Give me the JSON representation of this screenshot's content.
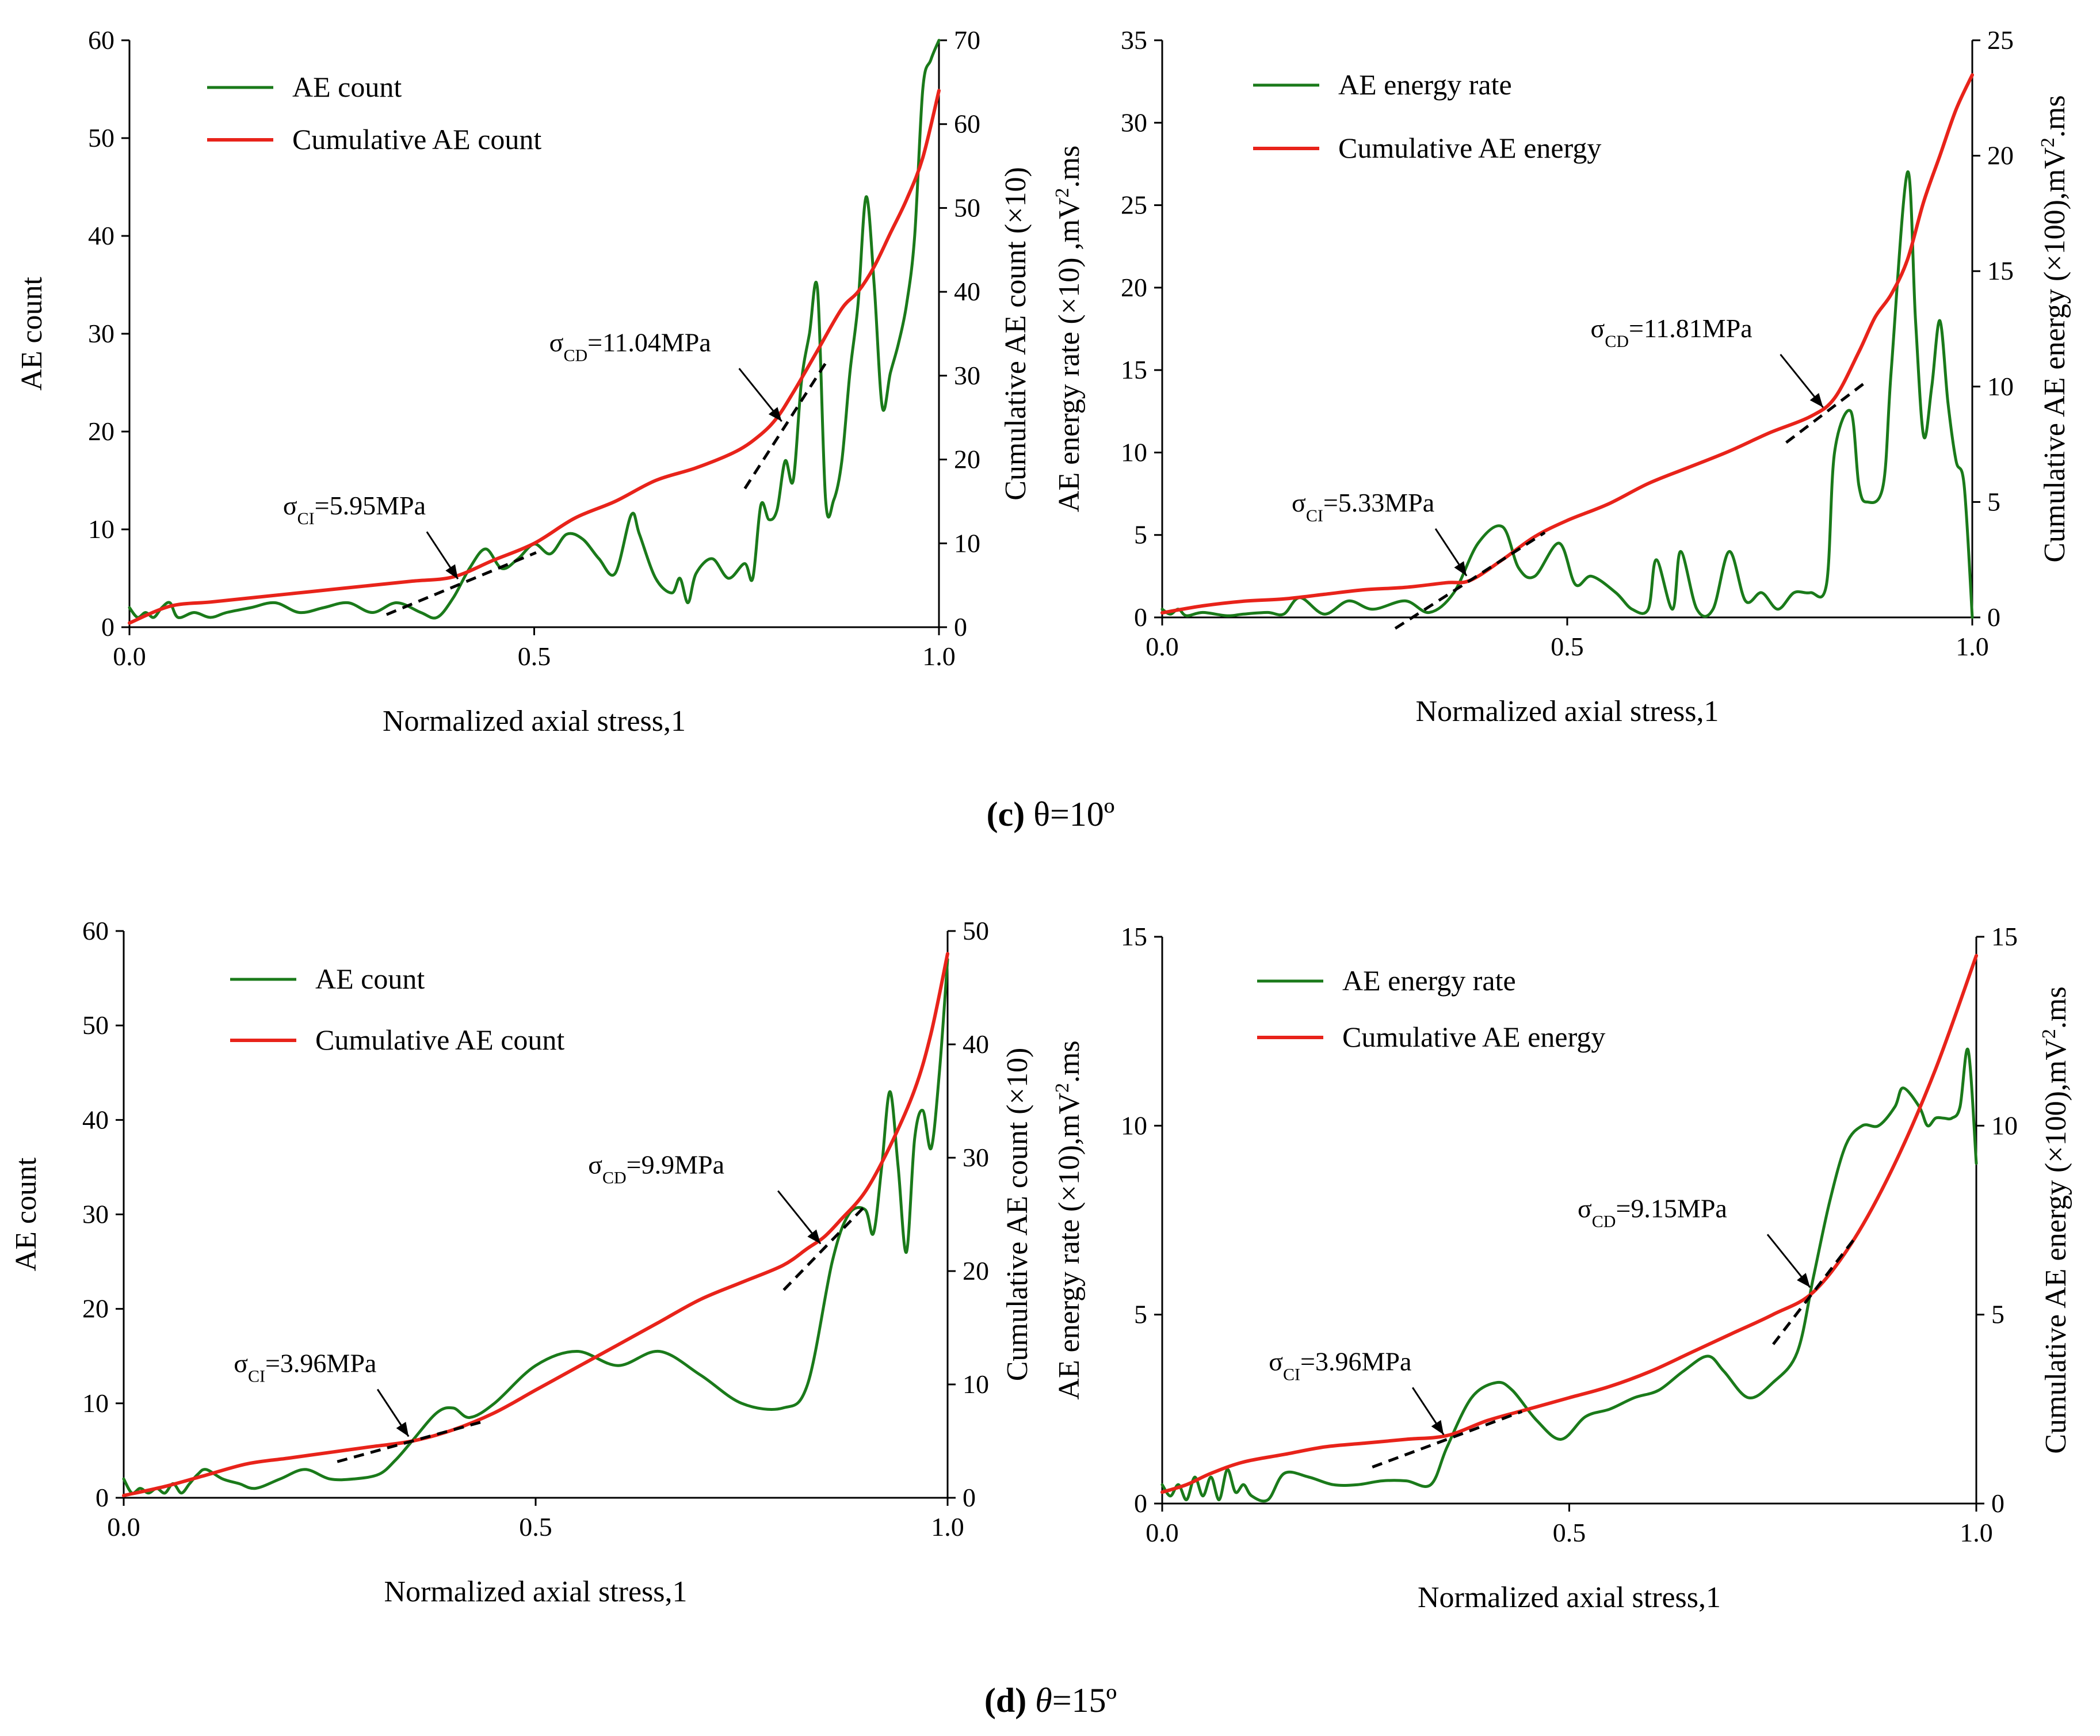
{
  "figure": {
    "captions": [
      {
        "letter": "(c)",
        "text": "θ=10º",
        "italic": false
      },
      {
        "letter": "(d)",
        "text": "θ=15º",
        "italic": true
      }
    ]
  },
  "chart_data": [
    {
      "type": "line",
      "title": "",
      "xlabel": "Normalized axial stress,1",
      "ylabel": "AE count",
      "y2label": "Cumulative AE count (×10)",
      "xlim": [
        0,
        1
      ],
      "ylim": [
        0,
        60
      ],
      "y2lim": [
        0,
        70
      ],
      "xticks": [
        0,
        0.5,
        1
      ],
      "xtick_labels": [
        "0.0",
        "0.5",
        "1.0"
      ],
      "yticks": [
        0,
        10,
        20,
        30,
        40,
        50,
        60
      ],
      "y2ticks": [
        0,
        10,
        20,
        30,
        40,
        50,
        60,
        70
      ],
      "legend": [
        "AE count",
        "Cumulative AE count"
      ],
      "legend_position": "top-left",
      "series": [
        {
          "name": "AE count",
          "axis": "left",
          "color": "#1a7a1a",
          "x": [
            0,
            0.01,
            0.02,
            0.03,
            0.04,
            0.05,
            0.06,
            0.08,
            0.1,
            0.12,
            0.15,
            0.18,
            0.21,
            0.24,
            0.27,
            0.3,
            0.33,
            0.36,
            0.38,
            0.4,
            0.42,
            0.44,
            0.46,
            0.48,
            0.5,
            0.52,
            0.54,
            0.56,
            0.58,
            0.6,
            0.62,
            0.63,
            0.65,
            0.67,
            0.68,
            0.69,
            0.7,
            0.72,
            0.74,
            0.76,
            0.77,
            0.78,
            0.79,
            0.8,
            0.81,
            0.82,
            0.83,
            0.84,
            0.85,
            0.86,
            0.87,
            0.88,
            0.89,
            0.9,
            0.91,
            0.92,
            0.93,
            0.94,
            0.95,
            0.96,
            0.97,
            0.98,
            0.99,
            1.0
          ],
          "y": [
            2,
            1,
            1.5,
            1,
            2,
            2.5,
            1,
            1.5,
            1,
            1.5,
            2,
            2.5,
            1.5,
            2,
            2.5,
            1.5,
            2.5,
            1.5,
            1,
            3,
            6,
            8,
            6,
            7,
            8.5,
            7.5,
            9.5,
            9,
            7,
            5.5,
            11.5,
            9.5,
            5,
            3.5,
            5,
            2.5,
            5.5,
            7,
            5,
            6.5,
            5,
            12.5,
            11,
            12,
            17,
            15,
            25,
            30,
            34.5,
            13,
            13,
            17,
            26,
            33,
            44,
            35,
            22.5,
            26,
            29,
            33,
            40,
            55,
            58,
            60
          ]
        },
        {
          "name": "Cumulative AE count",
          "axis": "right",
          "color": "#e8231a",
          "x": [
            0,
            0.05,
            0.1,
            0.15,
            0.2,
            0.25,
            0.3,
            0.35,
            0.4,
            0.45,
            0.5,
            0.55,
            0.6,
            0.65,
            0.7,
            0.75,
            0.78,
            0.8,
            0.82,
            0.85,
            0.88,
            0.9,
            0.92,
            0.94,
            0.96,
            0.98,
            1.0
          ],
          "y": [
            0.5,
            2.5,
            3,
            3.5,
            4,
            4.5,
            5,
            5.5,
            6,
            8,
            10,
            13,
            15,
            17.5,
            19,
            21,
            23,
            25,
            28,
            33,
            38,
            40,
            43,
            47,
            51,
            56,
            64
          ]
        }
      ],
      "annotations": [
        {
          "label": "σ",
          "sub": "CI",
          "value": "=5.95MPa",
          "at_x": 0.41,
          "at_y": 5.2
        },
        {
          "label": "σ",
          "sub": "CD",
          "value": "=11.04MPa",
          "at_x": 0.81,
          "at_y": 24
        }
      ]
    },
    {
      "type": "line",
      "title": "",
      "xlabel": "Normalized axial stress,1",
      "ylabel": "AE energy rate (×10) ,mV²·ms",
      "ylabel_prefix": "AE energy rate (×10) ,mV",
      "ylabel_sup": "2",
      "ylabel_suffix": ".ms",
      "y2label": "Cumulative AE energy (×100),mV²·ms",
      "y2label_prefix": "Cumulative AE energy (×100),mV",
      "y2label_sup": "2",
      "y2label_suffix": ".ms",
      "xlim": [
        0,
        1
      ],
      "ylim": [
        0,
        35
      ],
      "y2lim": [
        0,
        25
      ],
      "xticks": [
        0,
        0.5,
        1
      ],
      "xtick_labels": [
        "0.0",
        "0.5",
        "1.0"
      ],
      "yticks": [
        0,
        5,
        10,
        15,
        20,
        25,
        30,
        35
      ],
      "y2ticks": [
        0,
        5,
        10,
        15,
        20,
        25
      ],
      "legend": [
        "AE energy rate",
        "Cumulative AE energy"
      ],
      "legend_position": "top-left",
      "series": [
        {
          "name": "AE energy rate",
          "axis": "left",
          "color": "#1a7a1a",
          "x": [
            0,
            0.01,
            0.02,
            0.03,
            0.05,
            0.08,
            0.1,
            0.13,
            0.15,
            0.17,
            0.2,
            0.23,
            0.26,
            0.3,
            0.33,
            0.36,
            0.39,
            0.42,
            0.44,
            0.46,
            0.49,
            0.51,
            0.53,
            0.56,
            0.58,
            0.6,
            0.61,
            0.63,
            0.64,
            0.66,
            0.68,
            0.7,
            0.72,
            0.74,
            0.76,
            0.78,
            0.8,
            0.82,
            0.83,
            0.85,
            0.86,
            0.87,
            0.89,
            0.9,
            0.92,
            0.93,
            0.94,
            0.95,
            0.96,
            0.97,
            0.98,
            0.99,
            1.0
          ],
          "y": [
            0.5,
            0.2,
            0.5,
            0.1,
            0.3,
            0.1,
            0.2,
            0.3,
            0.2,
            1.2,
            0.2,
            1,
            0.5,
            1,
            0.3,
            1.5,
            4.5,
            5.5,
            3,
            2.5,
            4.5,
            2,
            2.5,
            1.5,
            0.5,
            0.5,
            3.5,
            0.5,
            4,
            0.5,
            0.5,
            4,
            1,
            1.5,
            0.5,
            1.5,
            1.5,
            2,
            10,
            12.5,
            8,
            7,
            8,
            15,
            27,
            18,
            11,
            14,
            18,
            13,
            9.5,
            8,
            0
          ]
        },
        {
          "name": "Cumulative AE energy",
          "axis": "right",
          "color": "#e8231a",
          "x": [
            0,
            0.05,
            0.1,
            0.15,
            0.2,
            0.25,
            0.3,
            0.35,
            0.38,
            0.42,
            0.46,
            0.5,
            0.55,
            0.6,
            0.65,
            0.7,
            0.75,
            0.8,
            0.83,
            0.86,
            0.88,
            0.9,
            0.92,
            0.94,
            0.96,
            0.98,
            1.0
          ],
          "y": [
            0.2,
            0.5,
            0.7,
            0.8,
            1,
            1.2,
            1.3,
            1.5,
            1.6,
            2.5,
            3.5,
            4.2,
            4.9,
            5.8,
            6.5,
            7.2,
            8,
            8.7,
            9.5,
            11.5,
            13,
            14,
            15.5,
            18,
            20,
            22,
            23.5
          ]
        }
      ],
      "annotations": [
        {
          "label": "σ",
          "sub": "CI",
          "value": "=5.33MPa",
          "at_x": 0.38,
          "at_y": 1.6
        },
        {
          "label": "σ",
          "sub": "CD",
          "value": "=11.81MPa",
          "at_x": 0.82,
          "at_y": 8.9
        }
      ]
    },
    {
      "type": "line",
      "title": "",
      "xlabel": "Normalized axial stress,1",
      "ylabel": "AE count",
      "y2label": "Cumulative AE count (×10)",
      "xlim": [
        0,
        1
      ],
      "ylim": [
        0,
        60
      ],
      "y2lim": [
        0,
        50
      ],
      "xticks": [
        0,
        0.5,
        1
      ],
      "xtick_labels": [
        "0.0",
        "0.5",
        "1.0"
      ],
      "yticks": [
        0,
        10,
        20,
        30,
        40,
        50,
        60
      ],
      "y2ticks": [
        0,
        10,
        20,
        30,
        40,
        50
      ],
      "legend": [
        "AE count",
        "Cumulative AE count"
      ],
      "legend_position": "top-left",
      "series": [
        {
          "name": "AE count",
          "axis": "left",
          "color": "#1a7a1a",
          "x": [
            0,
            0.01,
            0.02,
            0.03,
            0.04,
            0.05,
            0.06,
            0.07,
            0.08,
            0.09,
            0.1,
            0.12,
            0.14,
            0.16,
            0.19,
            0.22,
            0.25,
            0.28,
            0.31,
            0.33,
            0.35,
            0.38,
            0.4,
            0.42,
            0.45,
            0.5,
            0.55,
            0.6,
            0.65,
            0.7,
            0.75,
            0.8,
            0.83,
            0.86,
            0.88,
            0.9,
            0.91,
            0.92,
            0.93,
            0.94,
            0.95,
            0.96,
            0.97,
            0.98,
            0.99,
            1.0
          ],
          "y": [
            2,
            0.5,
            1,
            0.5,
            1,
            0.5,
            1.5,
            0.5,
            1.5,
            2.5,
            3,
            2,
            1.5,
            1,
            2,
            3,
            2,
            2,
            2.5,
            4,
            6,
            9,
            9.5,
            8.5,
            10,
            14,
            15.5,
            14,
            15.5,
            13,
            10,
            9.5,
            12,
            25,
            30,
            30.5,
            28,
            35,
            43,
            35,
            26,
            38,
            41,
            37,
            45,
            57
          ]
        },
        {
          "name": "Cumulative AE count",
          "axis": "right",
          "color": "#e8231a",
          "x": [
            0,
            0.05,
            0.1,
            0.15,
            0.2,
            0.25,
            0.3,
            0.35,
            0.4,
            0.45,
            0.5,
            0.55,
            0.6,
            0.65,
            0.7,
            0.75,
            0.8,
            0.83,
            0.85,
            0.87,
            0.9,
            0.93,
            0.96,
            0.98,
            1.0
          ],
          "y": [
            0.2,
            1,
            2,
            3,
            3.5,
            4,
            4.5,
            5,
            6,
            7.5,
            9.5,
            11.5,
            13.5,
            15.5,
            17.5,
            19,
            20.5,
            22,
            23,
            24.5,
            27,
            31,
            36,
            41,
            48
          ]
        }
      ],
      "annotations": [
        {
          "label": "σ",
          "sub": "CI",
          "value": "=3.96MPa",
          "at_x": 0.35,
          "at_y": 5
        },
        {
          "label": "σ",
          "sub": "CD",
          "value": "=9.9MPa",
          "at_x": 0.85,
          "at_y": 22
        }
      ]
    },
    {
      "type": "line",
      "title": "",
      "xlabel": "Normalized axial stress,1",
      "ylabel": "AE energy rate (×10),mV²·ms",
      "ylabel_prefix": "AE energy rate (×10),mV",
      "ylabel_sup": "2",
      "ylabel_suffix": ".ms",
      "y2label": "Cumulative AE energy (×100),mV²·ms",
      "y2label_prefix": "Cumulative AE energy (×100),mV",
      "y2label_sup": "2",
      "y2label_suffix": ".ms",
      "xlim": [
        0,
        1
      ],
      "ylim": [
        0,
        15
      ],
      "y2lim": [
        0,
        15
      ],
      "xticks": [
        0,
        0.5,
        1
      ],
      "xtick_labels": [
        "0.0",
        "0.5",
        "1.0"
      ],
      "yticks": [
        0,
        5,
        10,
        15
      ],
      "y2ticks": [
        0,
        5,
        10,
        15
      ],
      "legend": [
        "AE energy rate",
        "Cumulative AE energy"
      ],
      "legend_position": "top-left",
      "series": [
        {
          "name": "AE energy rate",
          "axis": "left",
          "color": "#1a7a1a",
          "x": [
            0,
            0.01,
            0.02,
            0.03,
            0.04,
            0.05,
            0.06,
            0.07,
            0.08,
            0.09,
            0.1,
            0.11,
            0.13,
            0.15,
            0.18,
            0.21,
            0.24,
            0.27,
            0.3,
            0.33,
            0.35,
            0.38,
            0.41,
            0.43,
            0.46,
            0.49,
            0.52,
            0.55,
            0.58,
            0.61,
            0.64,
            0.67,
            0.69,
            0.72,
            0.75,
            0.78,
            0.8,
            0.82,
            0.84,
            0.86,
            0.88,
            0.9,
            0.91,
            0.93,
            0.94,
            0.95,
            0.96,
            0.97,
            0.98,
            0.99,
            1.0
          ],
          "y": [
            0.5,
            0.2,
            0.5,
            0.1,
            0.7,
            0.2,
            0.7,
            0.1,
            0.9,
            0.3,
            0.5,
            0.2,
            0.1,
            0.8,
            0.7,
            0.5,
            0.5,
            0.6,
            0.6,
            0.5,
            1.5,
            2.8,
            3.2,
            3,
            2.2,
            1.7,
            2.3,
            2.5,
            2.8,
            3,
            3.5,
            3.9,
            3.5,
            2.8,
            3.2,
            4,
            6,
            8,
            9.5,
            10,
            10,
            10.5,
            11,
            10.5,
            10,
            10.2,
            10.2,
            10.2,
            10.5,
            12,
            9
          ]
        },
        {
          "name": "Cumulative AE energy",
          "axis": "right",
          "color": "#e8231a",
          "x": [
            0,
            0.03,
            0.06,
            0.1,
            0.15,
            0.2,
            0.25,
            0.3,
            0.35,
            0.4,
            0.45,
            0.5,
            0.55,
            0.6,
            0.65,
            0.7,
            0.75,
            0.8,
            0.85,
            0.9,
            0.95,
            1.0
          ],
          "y": [
            0.3,
            0.5,
            0.8,
            1.1,
            1.3,
            1.5,
            1.6,
            1.7,
            1.8,
            2.2,
            2.5,
            2.8,
            3.1,
            3.5,
            4,
            4.5,
            5,
            5.6,
            7,
            9,
            11.5,
            14.5
          ]
        }
      ],
      "annotations": [
        {
          "label": "σ",
          "sub": "CI",
          "value": "=3.96MPa",
          "at_x": 0.35,
          "at_y": 1.7
        },
        {
          "label": "σ",
          "sub": "CD",
          "value": "=9.15MPa",
          "at_x": 0.8,
          "at_y": 5.6
        }
      ]
    }
  ]
}
